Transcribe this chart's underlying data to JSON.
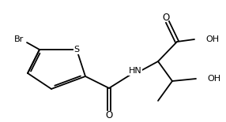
{
  "bg_color": "#ffffff",
  "line_color": "#000000",
  "text_color": "#000000",
  "label_Br": "Br",
  "label_S": "S",
  "label_HN": "HN",
  "label_O1": "O",
  "label_O2": "O",
  "label_OH_cooh": "OH",
  "label_OH": "OH",
  "figsize": [
    2.86,
    1.55
  ],
  "dpi": 100,
  "lw": 1.3,
  "fs": 7.5
}
